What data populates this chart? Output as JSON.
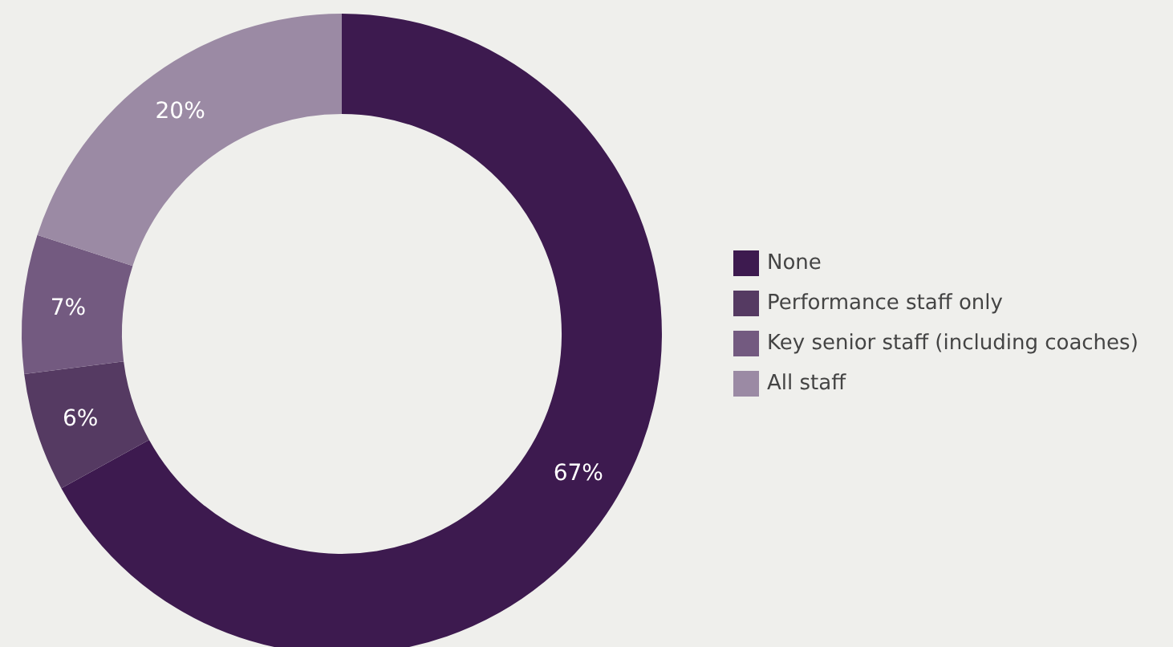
{
  "chart_data": {
    "type": "donut",
    "categories": [
      "None",
      "Performance staff only",
      "Key senior staff (including coaches)",
      "All staff"
    ],
    "values": [
      67,
      6,
      7,
      20
    ],
    "colors": [
      "#3d1a4f",
      "#553a62",
      "#735a80",
      "#9b8aa4"
    ],
    "value_labels": [
      "67%",
      "6%",
      "7%",
      "20%"
    ],
    "legend": "right"
  }
}
